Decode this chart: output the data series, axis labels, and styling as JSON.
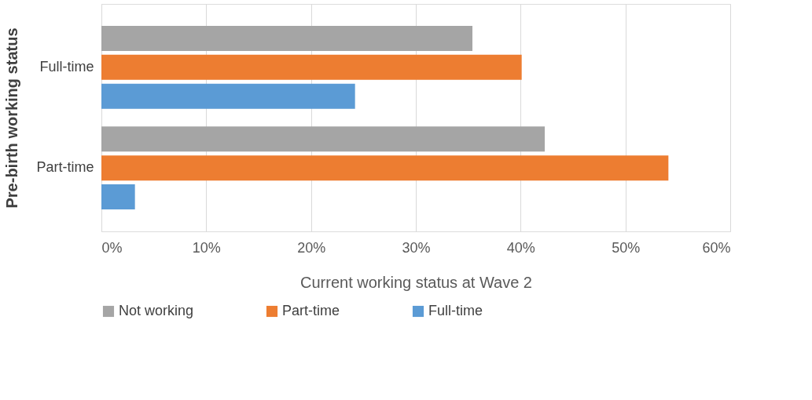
{
  "chart_data": {
    "type": "bar",
    "orientation": "horizontal",
    "ylabel": "Pre-birth working status",
    "xlabel": "Current working status at Wave 2",
    "categories": [
      "Full-time",
      "Part-time"
    ],
    "series": [
      {
        "name": "Not working",
        "color": "#a5a5a5",
        "values": [
          35.4,
          42.3
        ]
      },
      {
        "name": "Part-time",
        "color": "#ed7d31",
        "values": [
          40.1,
          54.1
        ]
      },
      {
        "name": "Full-time",
        "color": "#5b9bd5",
        "values": [
          24.2,
          3.2
        ]
      }
    ],
    "xlim": [
      0,
      60
    ],
    "xticks": [
      {
        "value": 0,
        "label": "0%"
      },
      {
        "value": 10,
        "label": "10%"
      },
      {
        "value": 20,
        "label": "20%"
      },
      {
        "value": 30,
        "label": "30%"
      },
      {
        "value": 40,
        "label": "40%"
      },
      {
        "value": 50,
        "label": "50%"
      },
      {
        "value": 60,
        "label": "60%"
      }
    ],
    "grid": "x",
    "legend": "bottom"
  }
}
